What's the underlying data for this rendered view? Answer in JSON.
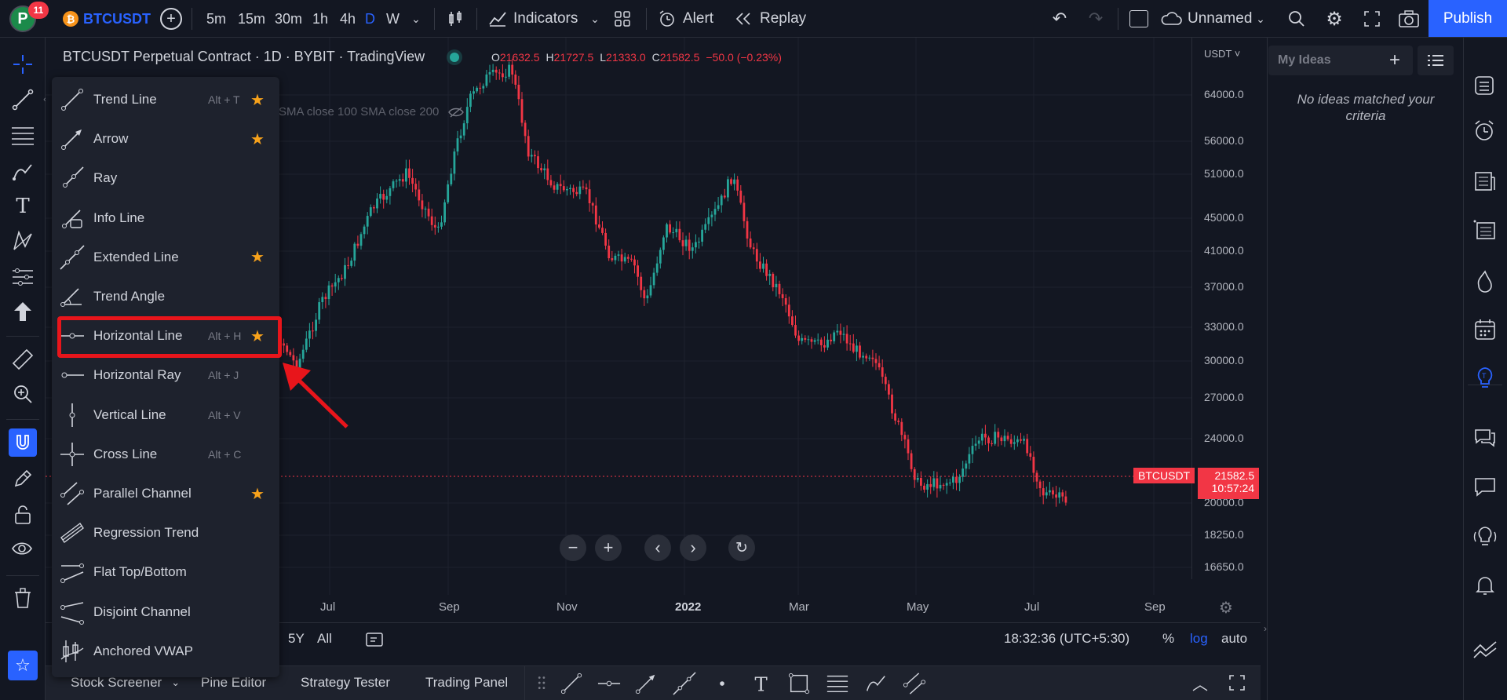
{
  "header": {
    "avatar_initial": "P",
    "notification_count": "11",
    "symbol": "BTCUSDT",
    "timeframes": [
      "5m",
      "15m",
      "30m",
      "1h",
      "4h",
      "D",
      "W"
    ],
    "active_timeframe": "D",
    "indicators_label": "Indicators",
    "alert_label": "Alert",
    "replay_label": "Replay",
    "layout_name": "Unnamed",
    "publish_label": "Publish"
  },
  "chart": {
    "title": "BTCUSDT Perpetual Contract · 1D · BYBIT · TradingView",
    "ohlc": {
      "o": "21632.5",
      "h": "21727.5",
      "l": "21333.0",
      "c": "21582.5",
      "change": "−50.0 (−0.23%)"
    },
    "indicator_legend": "SMA close 100 SMA close 200",
    "currency": "USDT",
    "price_labels": [
      "64000.0",
      "56000.0",
      "51000.0",
      "45000.0",
      "41000.0",
      "37000.0",
      "33000.0",
      "30000.0",
      "27000.0",
      "24000.0",
      "20000.0",
      "18250.0",
      "16650.0"
    ],
    "time_labels": [
      "Jul",
      "Sep",
      "Nov",
      "2022",
      "Mar",
      "May",
      "Jul",
      "Sep"
    ],
    "last_price_symbol": "BTCUSDT",
    "last_price": "21582.5",
    "countdown": "10:57:24",
    "clock": "18:32:36 (UTC+5:30)",
    "ranges": [
      "5Y",
      "All"
    ],
    "scale_percent": "%",
    "scale_log": "log",
    "scale_auto": "auto"
  },
  "drawing_menu": [
    {
      "label": "Trend Line",
      "shortcut": "Alt + T",
      "starred": true,
      "icon": "trend-line-icon"
    },
    {
      "label": "Arrow",
      "shortcut": "",
      "starred": true,
      "icon": "arrow-icon"
    },
    {
      "label": "Ray",
      "shortcut": "",
      "starred": false,
      "icon": "ray-icon"
    },
    {
      "label": "Info Line",
      "shortcut": "",
      "starred": false,
      "icon": "info-line-icon"
    },
    {
      "label": "Extended Line",
      "shortcut": "",
      "starred": true,
      "icon": "extended-line-icon"
    },
    {
      "label": "Trend Angle",
      "shortcut": "",
      "starred": false,
      "icon": "trend-angle-icon"
    },
    {
      "label": "Horizontal Line",
      "shortcut": "Alt + H",
      "starred": true,
      "icon": "horizontal-line-icon"
    },
    {
      "label": "Horizontal Ray",
      "shortcut": "Alt + J",
      "starred": false,
      "icon": "horizontal-ray-icon"
    },
    {
      "label": "Vertical Line",
      "shortcut": "Alt + V",
      "starred": false,
      "icon": "vertical-line-icon"
    },
    {
      "label": "Cross Line",
      "shortcut": "Alt + C",
      "starred": false,
      "icon": "cross-line-icon"
    },
    {
      "label": "Parallel Channel",
      "shortcut": "",
      "starred": true,
      "icon": "parallel-channel-icon"
    },
    {
      "label": "Regression Trend",
      "shortcut": "",
      "starred": false,
      "icon": "regression-trend-icon"
    },
    {
      "label": "Flat Top/Bottom",
      "shortcut": "",
      "starred": false,
      "icon": "flat-top-bottom-icon"
    },
    {
      "label": "Disjoint Channel",
      "shortcut": "",
      "starred": false,
      "icon": "disjoint-channel-icon"
    },
    {
      "label": "Anchored VWAP",
      "shortcut": "",
      "starred": false,
      "icon": "anchored-vwap-icon"
    }
  ],
  "bottom_tabs": [
    "Stock Screener",
    "Pine Editor",
    "Strategy Tester",
    "Trading Panel"
  ],
  "ideas": {
    "title": "My Ideas",
    "empty_message": "No ideas matched your criteria"
  },
  "colors": {
    "accent": "#2962ff",
    "up": "#26a69a",
    "down": "#f23645",
    "highlight": "#e8151b",
    "star": "#f7a21b"
  }
}
